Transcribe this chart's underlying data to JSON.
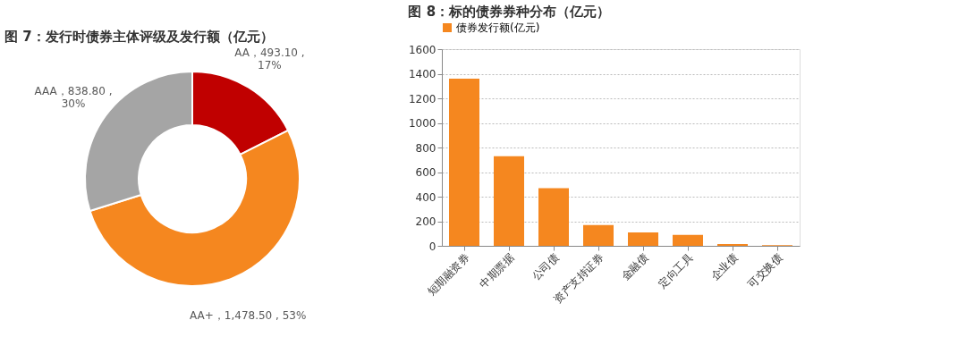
{
  "chart_data": [
    {
      "type": "donut",
      "title": "图 7：发行时债券主体评级及发行额（亿元）",
      "categories": [
        "AA",
        "AA+",
        "AAA"
      ],
      "values": [
        493.1,
        1478.5,
        838.8
      ],
      "colors": [
        "#c00000",
        "#f5871f",
        "#a5a5a5"
      ],
      "value_labels": [
        "493.10 ,\n17%",
        "1,478.50 , 53%",
        "838.80 ,\n30%"
      ],
      "legend": false
    },
    {
      "type": "bar",
      "title": "图 8：标的债券券种分布（亿元）",
      "categories": [
        "短期融资券",
        "中期票据",
        "公司债",
        "资产支持证券",
        "金融债",
        "定向工具",
        "企业债",
        "可交换债"
      ],
      "series": [
        {
          "name": "债券发行额(亿元)",
          "color": "#f5871f",
          "values": [
            1360,
            730,
            470,
            170,
            110,
            90,
            15,
            5
          ]
        }
      ],
      "ylim": [
        0,
        1600
      ],
      "yticks": [
        0,
        200,
        400,
        600,
        800,
        1000,
        1200,
        1400,
        1600
      ],
      "grid": "y",
      "legend": "top"
    }
  ]
}
